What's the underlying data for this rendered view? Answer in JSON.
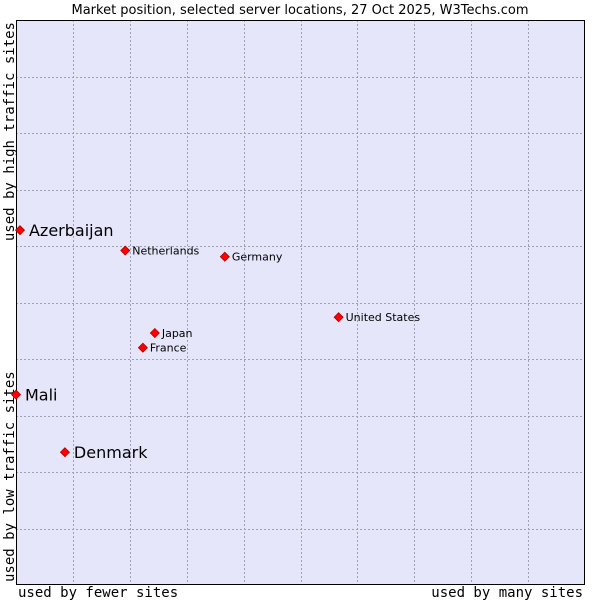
{
  "chart_data": {
    "type": "scatter",
    "title": "Market position, selected server locations, 27 Oct 2025, W3Techs.com",
    "xlabel_left": "used by fewer sites",
    "xlabel_right": "used by many sites",
    "ylabel_bottom": "used by low traffic sites",
    "ylabel_top": "used by high traffic sites",
    "xlim": [
      0,
      100
    ],
    "ylim": [
      0,
      100
    ],
    "grid": true,
    "colors": {
      "plot_background": "#e6e6fa",
      "grid": "#a0a0b4",
      "marker": "#ff0000"
    },
    "points": [
      {
        "label": "Azerbaijan",
        "x": 0.7,
        "y": 62.8,
        "emphasis": true
      },
      {
        "label": "Netherlands",
        "x": 19.2,
        "y": 59.2,
        "emphasis": false
      },
      {
        "label": "Germany",
        "x": 36.7,
        "y": 58.1,
        "emphasis": false
      },
      {
        "label": "United States",
        "x": 56.7,
        "y": 47.4,
        "emphasis": false
      },
      {
        "label": "Japan",
        "x": 24.4,
        "y": 44.6,
        "emphasis": false
      },
      {
        "label": "France",
        "x": 22.3,
        "y": 42.0,
        "emphasis": false
      },
      {
        "label": "Mali",
        "x": 0.0,
        "y": 33.7,
        "emphasis": true
      },
      {
        "label": "Denmark",
        "x": 8.6,
        "y": 23.5,
        "emphasis": true
      }
    ]
  }
}
